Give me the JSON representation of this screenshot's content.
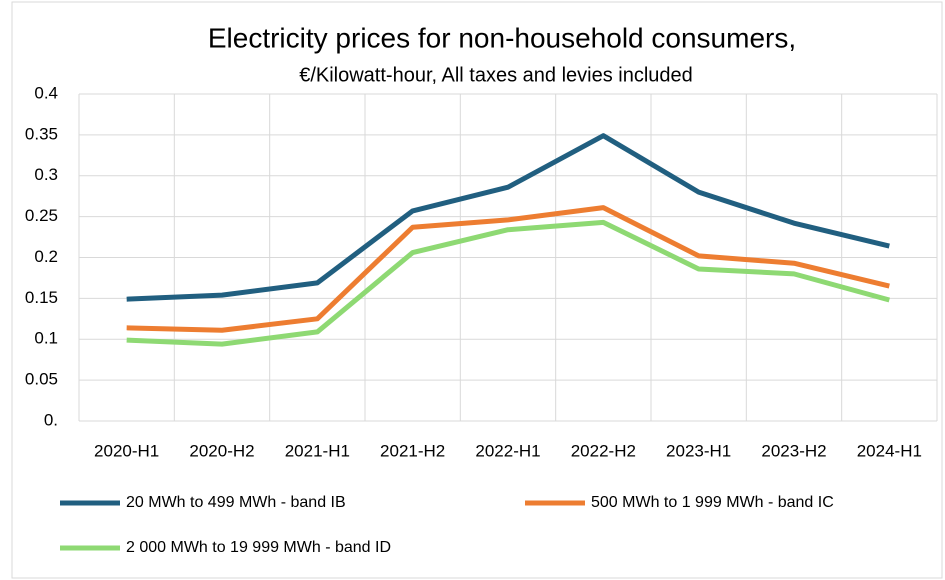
{
  "chart_data": {
    "type": "line",
    "title": "Electricity prices for non-household  consumers,",
    "subtitle": "€/Kilowatt-hour, All taxes and levies included",
    "categories": [
      "2020-H1",
      "2020-H2",
      "2021-H1",
      "2021-H2",
      "2022-H1",
      "2022-H2",
      "2023-H1",
      "2023-H2",
      "2024-H1"
    ],
    "series": [
      {
        "name": "20 MWh to 499 MWh - band IB",
        "color": "#215f80",
        "values": [
          0.149,
          0.154,
          0.169,
          0.257,
          0.286,
          0.349,
          0.28,
          0.242,
          0.214
        ]
      },
      {
        "name": "500 MWh to 1 999 MWh - band IC",
        "color": "#ed7d31",
        "values": [
          0.114,
          0.111,
          0.125,
          0.237,
          0.246,
          0.261,
          0.202,
          0.193,
          0.165
        ]
      },
      {
        "name": "2 000 MWh to 19 999 MWh - band ID",
        "color": "#8ed973",
        "values": [
          0.099,
          0.094,
          0.109,
          0.206,
          0.234,
          0.243,
          0.186,
          0.18,
          0.148
        ]
      }
    ],
    "ylim": [
      0,
      0.4
    ],
    "yticks": [
      {
        "value": 0,
        "label": "0."
      },
      0.05,
      0.1,
      0.15,
      0.2,
      0.25,
      0.3,
      0.35,
      0.4
    ],
    "grid": true
  }
}
